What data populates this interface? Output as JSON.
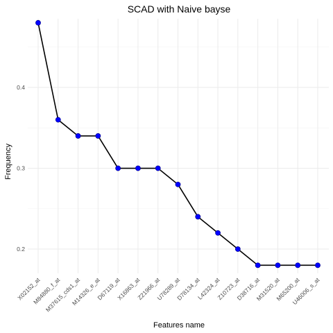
{
  "chart_data": {
    "type": "line",
    "title": "SCAD with Naive bayse",
    "xlabel": "Features name",
    "ylabel": "Frequency",
    "categories": [
      "X02152_at",
      "M84880_f_at",
      "M37615_cds1_at",
      "M14326_e_at",
      "D67119_at",
      "X16863_at",
      "Z21966_at",
      "U78289_at",
      "D78134_at",
      "L42324_at",
      "Z10723_at",
      "D38716_at",
      "M31520_at",
      "M65200_at",
      "U46006_s_at"
    ],
    "values": [
      0.48,
      0.36,
      0.34,
      0.34,
      0.3,
      0.3,
      0.3,
      0.28,
      0.24,
      0.22,
      0.2,
      0.18,
      0.18,
      0.18,
      0.18
    ],
    "yticks": [
      0.2,
      0.3,
      0.4
    ],
    "ytick_labels": [
      "0.2",
      "0.3",
      "0.4"
    ],
    "ylim": [
      0.17,
      0.485
    ],
    "grid": true,
    "colors": {
      "line": "#000000",
      "point": "#0000ff",
      "grid": "#ebebeb"
    }
  }
}
